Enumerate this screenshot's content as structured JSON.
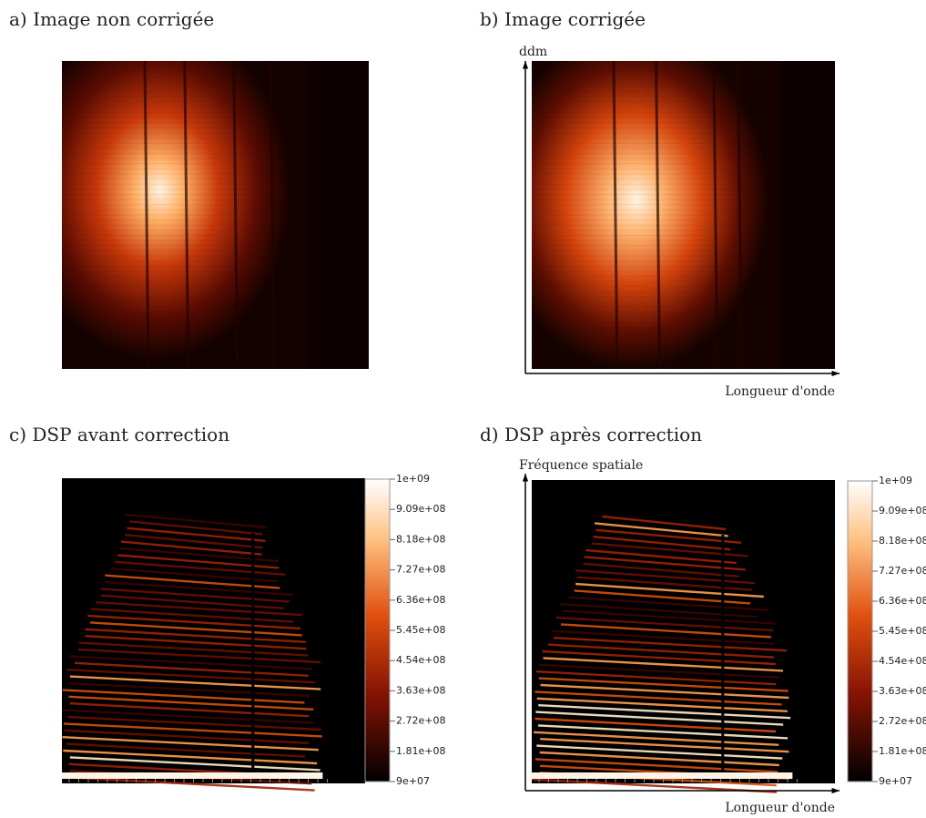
{
  "panels": [
    {
      "label": "a) Image non corrigée"
    },
    {
      "label": "b) Image corrigée",
      "y_axis_label": "ddm",
      "x_axis_label": "Longueur d'onde"
    },
    {
      "label": "c) DSP avant correction",
      "colorbar": {
        "lim": [
          90000000,
          1000000000
        ],
        "ticks": [
          {
            "value": 1000000000,
            "label": "1e+09"
          },
          {
            "value": 909000000,
            "label": "9.09e+08"
          },
          {
            "value": 818000000,
            "label": "8.18e+08"
          },
          {
            "value": 727000000,
            "label": "7.27e+08"
          },
          {
            "value": 636000000,
            "label": "6.36e+08"
          },
          {
            "value": 545000000,
            "label": "5.45e+08"
          },
          {
            "value": 454000000,
            "label": "4.54e+08"
          },
          {
            "value": 363000000,
            "label": "3.63e+08"
          },
          {
            "value": 272000000,
            "label": "2.72e+08"
          },
          {
            "value": 181000000,
            "label": "1.81e+08"
          },
          {
            "value": 90000000,
            "label": "9e+07"
          }
        ]
      }
    },
    {
      "label": "d) DSP après correction",
      "y_axis_label": "Fréquence spatiale",
      "x_axis_label": "Longueur d'onde",
      "colorbar": {
        "lim": [
          90000000,
          1000000000
        ],
        "ticks": [
          {
            "value": 1000000000,
            "label": "1e+09"
          },
          {
            "value": 909000000,
            "label": "9.09e+08"
          },
          {
            "value": 818000000,
            "label": "8.18e+08"
          },
          {
            "value": 727000000,
            "label": "7.27e+08"
          },
          {
            "value": 636000000,
            "label": "6.36e+08"
          },
          {
            "value": 545000000,
            "label": "5.45e+08"
          },
          {
            "value": 454000000,
            "label": "4.54e+08"
          },
          {
            "value": 363000000,
            "label": "3.63e+08"
          },
          {
            "value": 272000000,
            "label": "2.72e+08"
          },
          {
            "value": 181000000,
            "label": "1.81e+08"
          },
          {
            "value": 90000000,
            "label": "9e+07"
          }
        ]
      }
    }
  ]
}
